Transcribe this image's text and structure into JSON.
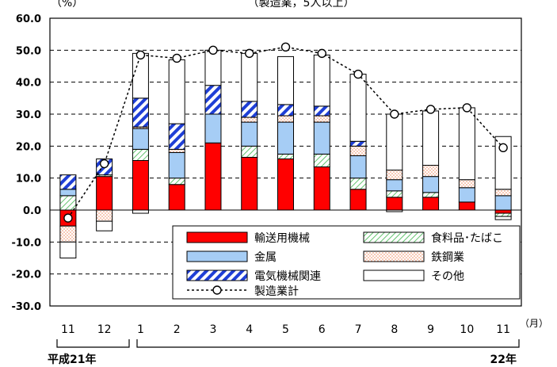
{
  "chart_data": {
    "type": "bar",
    "stacked": true,
    "title": "（製造業，5人以上）",
    "ylabel": "（%）",
    "xunit": "（月）",
    "ylim": [
      -30,
      60
    ],
    "yticks": [
      "-30.0",
      "-20.0",
      "-10.0",
      "0.0",
      "10.0",
      "20.0",
      "30.0",
      "40.0",
      "50.0",
      "60.0"
    ],
    "ytick_values": [
      -30,
      -20,
      -10,
      0,
      10,
      20,
      30,
      40,
      50,
      60
    ],
    "categories": [
      "11",
      "12",
      "1",
      "2",
      "3",
      "4",
      "5",
      "6",
      "7",
      "8",
      "9",
      "10",
      "11"
    ],
    "year_labels": [
      "平成21年",
      "22年"
    ],
    "grid": "horizontal-dashed",
    "legend_position": "bottom-right",
    "series": [
      {
        "name": "輸送用機械",
        "color": "#ff0000",
        "values": [
          -5,
          10.5,
          15.5,
          8,
          21,
          16.5,
          16,
          13.5,
          6.5,
          4,
          4,
          2.5,
          -1
        ]
      },
      {
        "name": "食料品･たばこ",
        "color": "#3cb44b",
        "values": [
          4.5,
          0.5,
          3.5,
          2,
          0,
          3.5,
          1.5,
          4,
          3.5,
          2,
          1.5,
          0,
          -1
        ]
      },
      {
        "name": "金属",
        "color": "#a6cdf5",
        "values": [
          2,
          0,
          6.5,
          8,
          9,
          7.5,
          10,
          10,
          7,
          3.5,
          5,
          4.5,
          4.5
        ]
      },
      {
        "name": "鉄鋼業",
        "color": "#f4a582",
        "values": [
          -5,
          -3.5,
          0.5,
          1,
          0,
          1.5,
          2,
          2,
          3,
          3,
          3.5,
          2.5,
          2
        ]
      },
      {
        "name": "電気機械関連",
        "color": "#1f3fd6",
        "values": [
          4.5,
          5,
          9,
          8,
          9,
          5,
          3.5,
          3,
          1.5,
          0,
          0,
          0,
          0
        ]
      },
      {
        "name": "その他",
        "color": "#ffffff",
        "values": [
          -5,
          -3,
          14,
          20,
          11,
          15,
          15,
          16,
          21,
          17.5,
          17,
          22.5,
          16.5
        ]
      }
    ],
    "negative_extra": [
      0,
      0,
      -1,
      0,
      0,
      0,
      0,
      0,
      0,
      -0.5,
      0,
      0,
      -1
    ],
    "line": {
      "name": "製造業計",
      "values": [
        -2.5,
        14.5,
        48.5,
        47.5,
        50,
        49,
        51,
        49,
        42.5,
        30,
        31.5,
        32,
        19.5
      ]
    }
  }
}
